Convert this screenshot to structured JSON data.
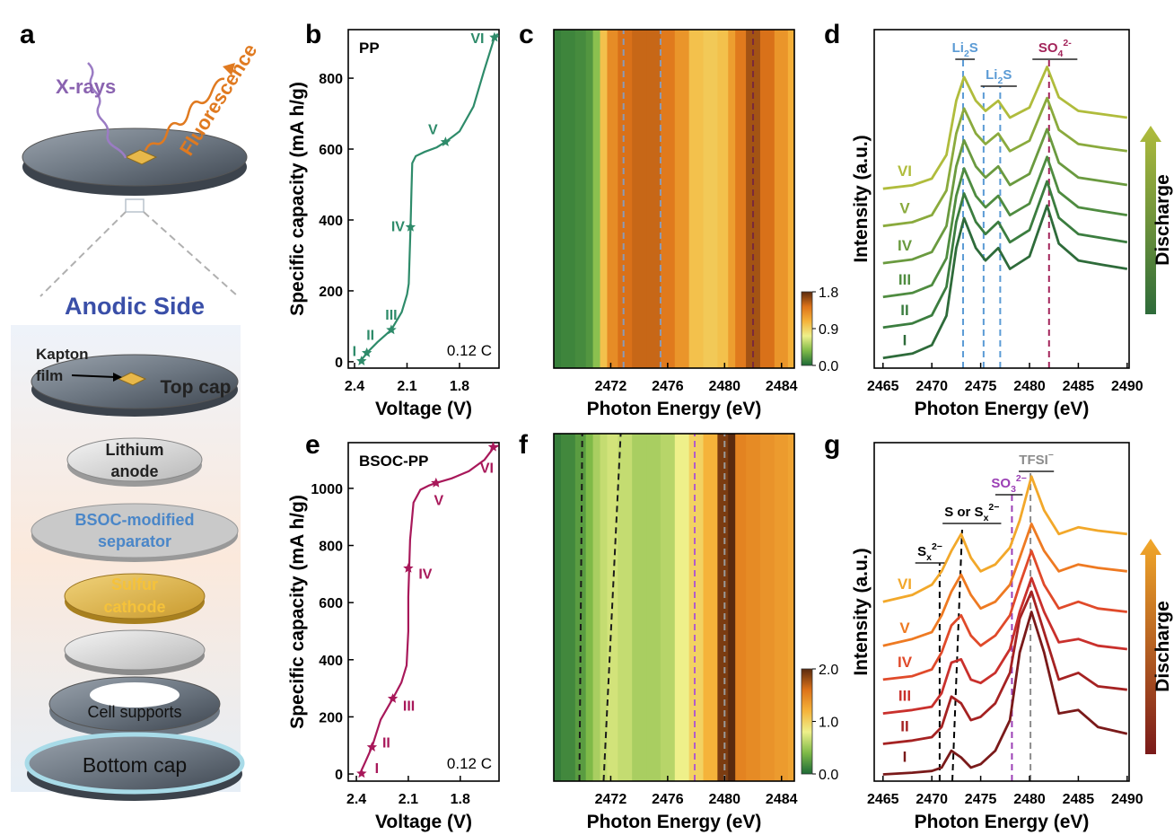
{
  "diagram": {
    "panel": "a",
    "xray_label": "X-rays",
    "fluorescence_label": "Fluorescence",
    "side_title": "Anodic Side",
    "kapton_label": [
      "Kapton",
      "film"
    ],
    "top_cap": "Top cap",
    "lithium_anode": [
      "Lithium",
      "anode"
    ],
    "separator": [
      "BSOC-modified",
      "separator"
    ],
    "cathode": [
      "Sulfur",
      "cathode"
    ],
    "cell_supports": "Cell supports",
    "bottom_cap": "Bottom cap"
  },
  "chart_data": [
    {
      "type": "line",
      "panel": "b",
      "title": "PP",
      "note": "0.12 C",
      "xlabel": "Voltage (V)",
      "ylabel": "Specific capacity (mA h/g)",
      "xlim": [
        2.436,
        1.574
      ],
      "ylim": [
        -18,
        937
      ],
      "xticks": [
        2.4,
        2.1,
        1.8
      ],
      "yticks": [
        0,
        200,
        400,
        600,
        800
      ],
      "color": "#2e8b6a",
      "x": [
        2.37,
        2.35,
        2.32,
        2.27,
        2.19,
        2.13,
        2.1,
        2.09,
        2.085,
        2.08,
        2.075,
        2.07,
        2.05,
        2.0,
        1.93,
        1.88,
        1.8,
        1.72,
        1.66,
        1.6,
        1.58
      ],
      "values": [
        0,
        12,
        30,
        55,
        90,
        140,
        190,
        220,
        300,
        380,
        480,
        560,
        580,
        592,
        605,
        620,
        650,
        720,
        820,
        915,
        925
      ],
      "points": {
        "x": [
          2.36,
          2.33,
          2.19,
          2.08,
          1.88,
          1.6
        ],
        "values": [
          2,
          25,
          90,
          380,
          620,
          915
        ],
        "labels": [
          "I",
          "II",
          "III",
          "IV",
          "V",
          "VI"
        ]
      }
    },
    {
      "type": "heatmap",
      "panel": "c",
      "xlabel": "Photon Energy (eV)",
      "xlim": [
        2468,
        2484.9
      ],
      "xticks": [
        2472,
        2476,
        2480,
        2484
      ],
      "clim": [
        0,
        1.8
      ],
      "cticks": [
        {
          "value": 0,
          "label": "0.0"
        },
        0.9,
        1.8
      ],
      "colormap": [
        "#1d6a36",
        "#7fba48",
        "#eef08a",
        "#f5b33a",
        "#dd7319",
        "#5a2a0e"
      ],
      "x": [
        2468,
        2469,
        2470,
        2470.5,
        2471,
        2471.5,
        2472,
        2473,
        2474,
        2475,
        2476,
        2477,
        2478,
        2479,
        2480,
        2480.5,
        2481,
        2482,
        2483,
        2484,
        2484.9
      ],
      "values": [
        0.1,
        0.12,
        0.15,
        0.2,
        0.4,
        1.0,
        1.3,
        1.45,
        1.5,
        1.5,
        1.4,
        1.25,
        1.0,
        0.95,
        1.0,
        1.2,
        1.4,
        1.6,
        1.45,
        1.25,
        1.1
      ],
      "guides": [
        {
          "x": [
            2472.9,
            2472.9
          ],
          "color": "#8a9bb8"
        },
        {
          "x": [
            2475.5,
            2475.5
          ],
          "color": "#8a9bb8"
        },
        {
          "x": [
            2482.0,
            2482.0
          ],
          "color": "#7a2a3a"
        }
      ]
    },
    {
      "type": "spectra",
      "panel": "d",
      "xlabel": "Photon Energy (eV)",
      "ylabel": "Intensity (a.u.)",
      "side_label": "Discharge",
      "xlim": [
        2464.1,
        2490.2
      ],
      "ylim": [
        0,
        10
      ],
      "xticks": [
        2465,
        2470,
        2475,
        2480,
        2485,
        2490
      ],
      "x": [
        2465,
        2468,
        2470,
        2471.5,
        2472.5,
        2473.3,
        2474.5,
        2475.5,
        2476.8,
        2478,
        2480,
        2481.8,
        2483,
        2485,
        2487.5,
        2490
      ],
      "series": [
        {
          "name": "I",
          "color": "#2e6b3a",
          "values": [
            0.3,
            0.43,
            0.68,
            1.55,
            3.55,
            4.43,
            3.55,
            3.18,
            3.55,
            2.93,
            3.3,
            4.8,
            3.68,
            3.18,
            3.05,
            2.93
          ]
        },
        {
          "name": "II",
          "color": "#3b7d3f",
          "values": [
            1.2,
            1.32,
            1.56,
            2.4,
            4.32,
            5.16,
            4.32,
            3.96,
            4.32,
            3.72,
            4.08,
            5.52,
            4.44,
            3.96,
            3.84,
            3.72
          ]
        },
        {
          "name": "III",
          "color": "#4f8c40",
          "values": [
            2.1,
            2.22,
            2.45,
            3.25,
            5.09,
            5.9,
            5.09,
            4.75,
            5.09,
            4.52,
            4.86,
            6.24,
            5.21,
            4.75,
            4.63,
            4.52
          ]
        },
        {
          "name": "IV",
          "color": "#6a9a3f",
          "values": [
            3.1,
            3.21,
            3.43,
            4.2,
            5.96,
            6.73,
            5.96,
            5.63,
            5.96,
            5.41,
            5.74,
            7.06,
            6.07,
            5.63,
            5.52,
            5.41
          ]
        },
        {
          "name": "V",
          "color": "#8aaa3d",
          "values": [
            4.2,
            4.31,
            4.52,
            5.25,
            6.93,
            7.67,
            6.93,
            6.62,
            6.93,
            6.41,
            6.72,
            7.98,
            7.04,
            6.62,
            6.51,
            6.41
          ]
        },
        {
          "name": "VI",
          "color": "#b0bc3c",
          "values": [
            5.3,
            5.4,
            5.6,
            6.3,
            7.9,
            8.6,
            7.9,
            7.6,
            7.9,
            7.4,
            7.7,
            8.9,
            8.0,
            7.6,
            7.5,
            7.4
          ]
        }
      ],
      "annotations": [
        {
          "segments": [
            {
              "text": "Li"
            },
            {
              "text": "2",
              "sub": true
            },
            {
              "text": "S"
            }
          ],
          "x": [
            2472.4,
            2474.4
          ],
          "color": "#5b9bd5"
        },
        {
          "segments": [
            {
              "text": "Li"
            },
            {
              "text": "2",
              "sub": true
            },
            {
              "text": "S"
            }
          ],
          "x": [
            2475.0,
            2478.7
          ],
          "color": "#5b9bd5"
        },
        {
          "segments": [
            {
              "text": "SO"
            },
            {
              "text": "4",
              "sub": true
            },
            {
              "text": "2-",
              "sup": true
            }
          ],
          "x": [
            2480.3,
            2484.9
          ],
          "color": "#a3245a"
        }
      ],
      "guides": [
        {
          "x": [
            2473.2,
            2473.2
          ],
          "color": "#5b9bd5"
        },
        {
          "x": [
            2475.3,
            2475.3
          ],
          "color": "#5b9bd5"
        },
        {
          "x": [
            2477.0,
            2477.0
          ],
          "color": "#5b9bd5"
        },
        {
          "x": [
            2482.0,
            2482.0
          ],
          "color": "#a3245a"
        }
      ]
    },
    {
      "type": "line",
      "panel": "e",
      "title": "BSOC-PP",
      "note": "0.12 C",
      "xlabel": "Voltage (V)",
      "ylabel": "Specific capacity (mA h/g)",
      "xlim": [
        2.447,
        1.576
      ],
      "ylim": [
        -25,
        1160
      ],
      "xticks": [
        2.4,
        2.1,
        1.8
      ],
      "yticks": [
        0,
        200,
        400,
        600,
        800,
        1000
      ],
      "color": "#a8185a",
      "x": [
        2.38,
        2.35,
        2.31,
        2.26,
        2.19,
        2.14,
        2.11,
        2.1,
        2.1,
        2.095,
        2.09,
        2.07,
        2.03,
        1.98,
        1.94,
        1.85,
        1.75,
        1.66,
        1.61,
        1.58
      ],
      "values": [
        0,
        40,
        94,
        190,
        264,
        320,
        380,
        500,
        620,
        720,
        820,
        950,
        995,
        1010,
        1019,
        1035,
        1060,
        1100,
        1140,
        1150
      ],
      "points": {
        "x": [
          2.37,
          2.31,
          2.19,
          2.1,
          1.94,
          1.61
        ],
        "values": [
          2,
          94,
          264,
          720,
          1019,
          1145
        ],
        "labels": [
          "I",
          "II",
          "III",
          "IV",
          "V",
          "VI"
        ]
      }
    },
    {
      "type": "heatmap",
      "panel": "f",
      "xlabel": "Photon Energy (eV)",
      "xlim": [
        2468,
        2484.9
      ],
      "xticks": [
        2472,
        2476,
        2480,
        2484
      ],
      "clim": [
        0,
        2
      ],
      "cticks": [
        {
          "value": 0,
          "label": "0.0"
        },
        {
          "value": 1,
          "label": "1.0"
        },
        {
          "value": 2,
          "label": "2.0"
        }
      ],
      "colormap": [
        "#1d6a36",
        "#7fba48",
        "#eef08a",
        "#f5b33a",
        "#dd7319",
        "#5a2a0e"
      ],
      "x": [
        2468,
        2469,
        2470,
        2470.5,
        2471,
        2471.5,
        2472,
        2473,
        2474,
        2475,
        2476,
        2477,
        2478,
        2479,
        2480,
        2480.5,
        2481,
        2482,
        2483,
        2484,
        2484.9
      ],
      "values": [
        0.1,
        0.15,
        0.25,
        0.4,
        0.55,
        0.65,
        0.7,
        0.65,
        0.55,
        0.55,
        0.6,
        0.8,
        1.0,
        1.2,
        1.9,
        2.0,
        1.5,
        1.45,
        1.4,
        1.35,
        1.3
      ],
      "guides": [
        {
          "x": [
            2469.8,
            2470.0
          ],
          "color": "#1a1a1a"
        },
        {
          "x": [
            2471.5,
            2472.7
          ],
          "color": "#1a1a1a"
        },
        {
          "x": [
            2477.9,
            2477.9
          ],
          "color": "#b35cc8"
        },
        {
          "x": [
            2480.0,
            2480.0
          ],
          "color": "#9a9a9a"
        }
      ]
    },
    {
      "type": "spectra",
      "panel": "g",
      "xlabel": "Photon Energy (eV)",
      "ylabel": "Intensity (a.u.)",
      "side_label": "Discharge",
      "xlim": [
        2464.1,
        2490.2
      ],
      "ylim": [
        0,
        10
      ],
      "xticks": [
        2465,
        2470,
        2475,
        2480,
        2485,
        2490
      ],
      "x": [
        2465,
        2468,
        2470,
        2471,
        2472,
        2473,
        2474,
        2475,
        2476.5,
        2478,
        2479,
        2480.2,
        2481.5,
        2483,
        2485,
        2487,
        2490
      ],
      "series": [
        {
          "name": "I",
          "color": "#7a1a1a",
          "values": [
            0.2,
            0.25,
            0.3,
            0.4,
            0.9,
            0.7,
            0.4,
            0.5,
            0.9,
            1.8,
            3.8,
            5.0,
            3.8,
            2.0,
            2.1,
            1.6,
            1.4
          ]
        },
        {
          "name": "II",
          "color": "#a52222",
          "values": [
            1.1,
            1.2,
            1.3,
            1.6,
            2.5,
            2.3,
            1.8,
            1.9,
            2.3,
            3.2,
            4.8,
            5.6,
            4.4,
            3.0,
            3.2,
            2.8,
            2.7
          ]
        },
        {
          "name": "III",
          "color": "#c9302c",
          "values": [
            2.0,
            2.1,
            2.2,
            2.6,
            3.5,
            3.6,
            3.0,
            2.9,
            3.2,
            3.9,
            5.0,
            6.0,
            5.0,
            4.1,
            4.2,
            4.0,
            3.9
          ]
        },
        {
          "name": "IV",
          "color": "#e04a2a",
          "values": [
            3.0,
            3.1,
            3.3,
            3.8,
            4.6,
            4.9,
            4.3,
            4.0,
            4.3,
            4.9,
            5.8,
            6.8,
            5.8,
            5.1,
            5.3,
            5.1,
            5.0
          ]
        },
        {
          "name": "V",
          "color": "#ee7a22",
          "values": [
            4.0,
            4.2,
            4.4,
            4.9,
            5.6,
            6.1,
            5.5,
            5.1,
            5.3,
            5.8,
            6.6,
            7.6,
            6.8,
            6.2,
            6.4,
            6.3,
            6.2
          ]
        },
        {
          "name": "VI",
          "color": "#f2a82a",
          "values": [
            5.3,
            5.5,
            5.8,
            6.2,
            6.8,
            7.3,
            6.6,
            6.2,
            6.4,
            6.9,
            7.7,
            9.0,
            8.0,
            7.3,
            7.5,
            7.4,
            7.3
          ]
        }
      ],
      "annotations": [
        {
          "segments": [
            {
              "text": "S"
            },
            {
              "text": "x",
              "sub": true
            },
            {
              "text": "2−",
              "sup": true
            }
          ],
          "x": [
            2468.3,
            2471.3
          ],
          "color": "#000000"
        },
        {
          "segments": [
            {
              "text": "S or S"
            },
            {
              "text": "x",
              "sub": true
            },
            {
              "text": "2−",
              "sup": true
            }
          ],
          "x": [
            2471.1,
            2477.1
          ],
          "color": "#000000"
        },
        {
          "segments": [
            {
              "text": "SO"
            },
            {
              "text": "3",
              "sub": true
            },
            {
              "text": "2−",
              "sup": true
            }
          ],
          "x": [
            2476.5,
            2479.3
          ],
          "color": "#9b3fb5"
        },
        {
          "segments": [
            {
              "text": "TFSI"
            },
            {
              "text": "−",
              "sup": true
            }
          ],
          "x": [
            2478.9,
            2482.5
          ],
          "color": "#8c8c8c"
        }
      ],
      "guides": [
        {
          "x": [
            2470.8,
            2470.8
          ],
          "color": "#000000"
        },
        {
          "x": [
            2472.1,
            2473.1
          ],
          "color": "#000000"
        },
        {
          "x": [
            2478.2,
            2478.2
          ],
          "color": "#9b3fb5"
        },
        {
          "x": [
            2480.1,
            2480.1
          ],
          "color": "#8c8c8c"
        }
      ]
    }
  ]
}
